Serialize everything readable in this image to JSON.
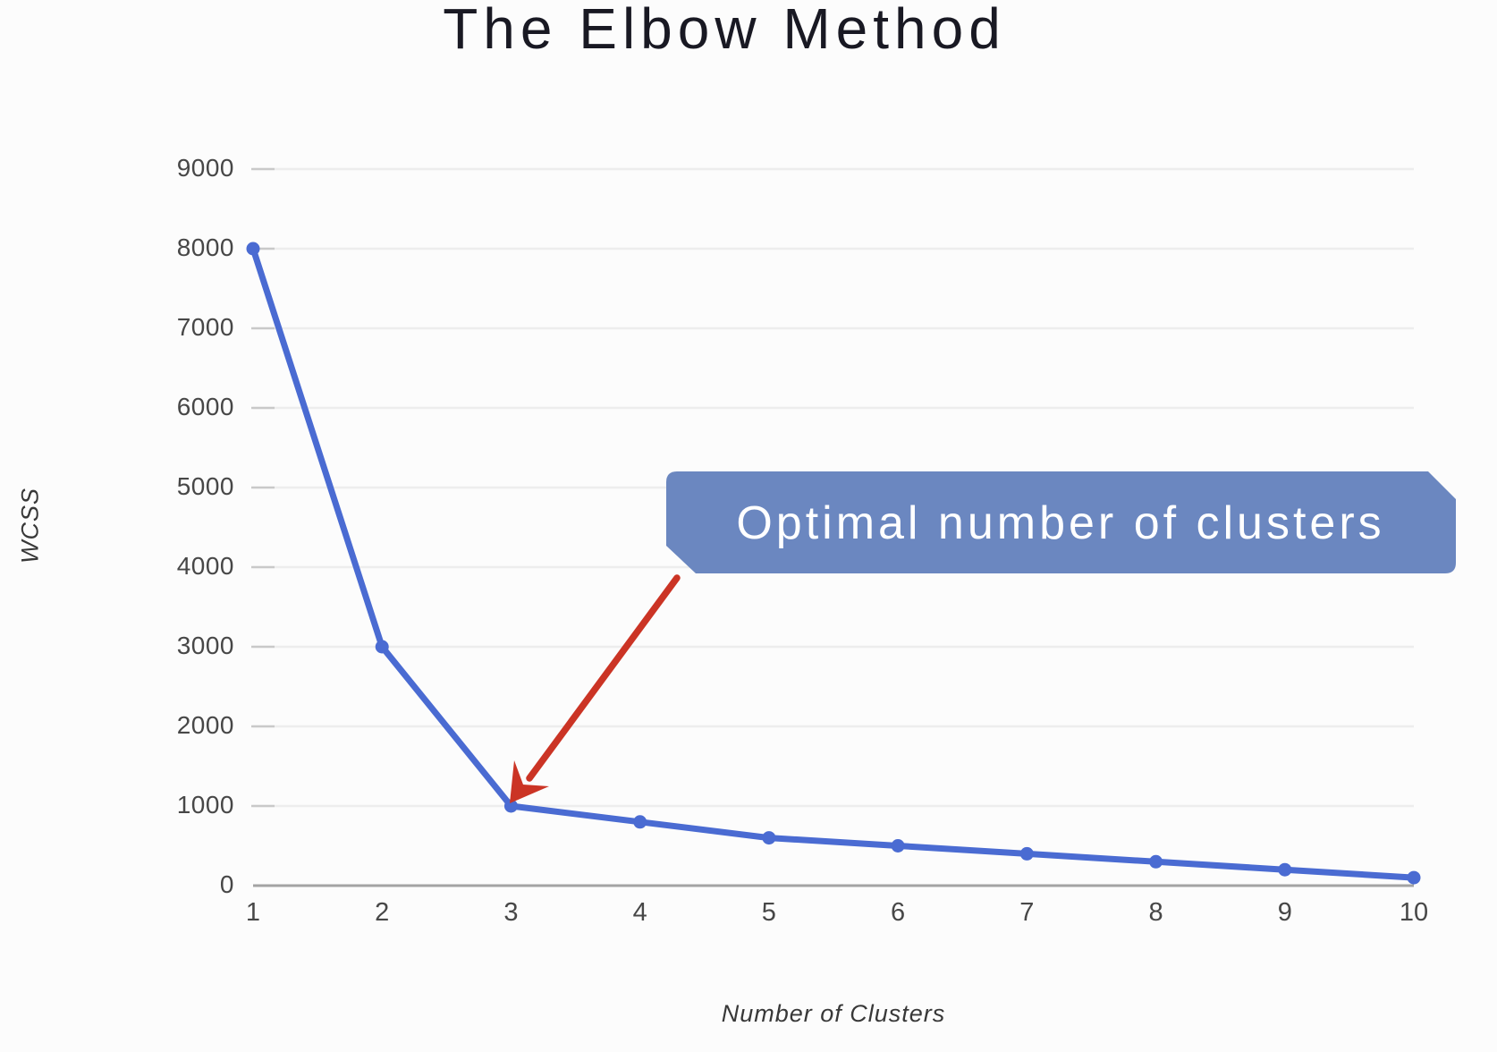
{
  "title": {
    "text": "The Elbow Method"
  },
  "chart_data": {
    "type": "line",
    "title": "The Elbow Method",
    "xlabel": "Number of Clusters",
    "ylabel": "WCSS",
    "x": [
      1,
      2,
      3,
      4,
      5,
      6,
      7,
      8,
      9,
      10
    ],
    "xtick_labels": [
      "1",
      "2",
      "3",
      "4",
      "5",
      "6",
      "7",
      "8",
      "9",
      "10"
    ],
    "values": [
      8000,
      3000,
      1000,
      800,
      600,
      500,
      400,
      300,
      200,
      100
    ],
    "ylim": [
      0,
      9000
    ],
    "ytick_interval": 1000,
    "ytick_labels": [
      "0",
      "1000",
      "2000",
      "3000",
      "4000",
      "5000",
      "6000",
      "7000",
      "8000",
      "9000"
    ],
    "grid": "horizontal",
    "legend": "none",
    "colors": {
      "line": "#4a6bd2",
      "marker": "#4a6bd2",
      "gridline": "#ededed",
      "tick_mark": "#c9c9c9",
      "axis_line": "#a3a3a3",
      "tick_label": "#474747",
      "axis_title": "#383838",
      "title": "#191923"
    }
  },
  "annotation": {
    "label": "Optimal number of clusters",
    "target_cluster": 3,
    "target_value": 1000,
    "fill": "#6b87c0",
    "border": "#4a5f8a",
    "text_color": "#ffffff",
    "arrow_color": "#cb3425"
  }
}
